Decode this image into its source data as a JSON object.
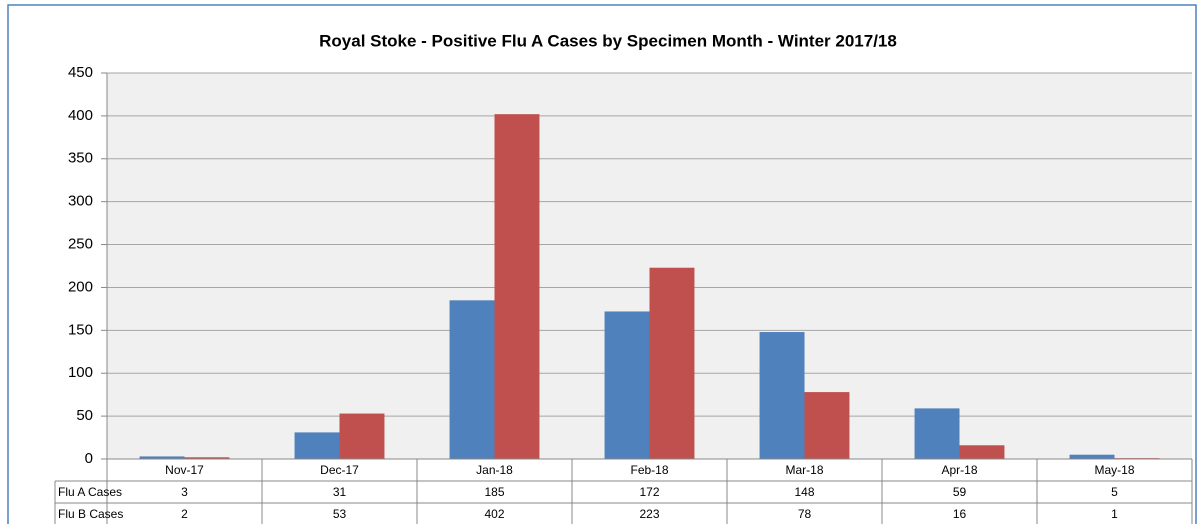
{
  "chart_data": {
    "type": "bar",
    "title": "Royal Stoke - Positive Flu A Cases by Specimen Month - Winter 2017/18",
    "categories": [
      "Nov-17",
      "Dec-17",
      "Jan-18",
      "Feb-18",
      "Mar-18",
      "Apr-18",
      "May-18"
    ],
    "series": [
      {
        "name": "Flu A Cases",
        "color": "#4f81bd",
        "values": [
          3,
          31,
          185,
          172,
          148,
          59,
          5
        ]
      },
      {
        "name": "Flu B Cases",
        "color": "#c0504d",
        "values": [
          2,
          53,
          402,
          223,
          78,
          16,
          1
        ]
      }
    ],
    "ylim": [
      0,
      450
    ],
    "yticks": [
      0,
      50,
      100,
      150,
      200,
      250,
      300,
      350,
      400,
      450
    ],
    "grid": true
  }
}
